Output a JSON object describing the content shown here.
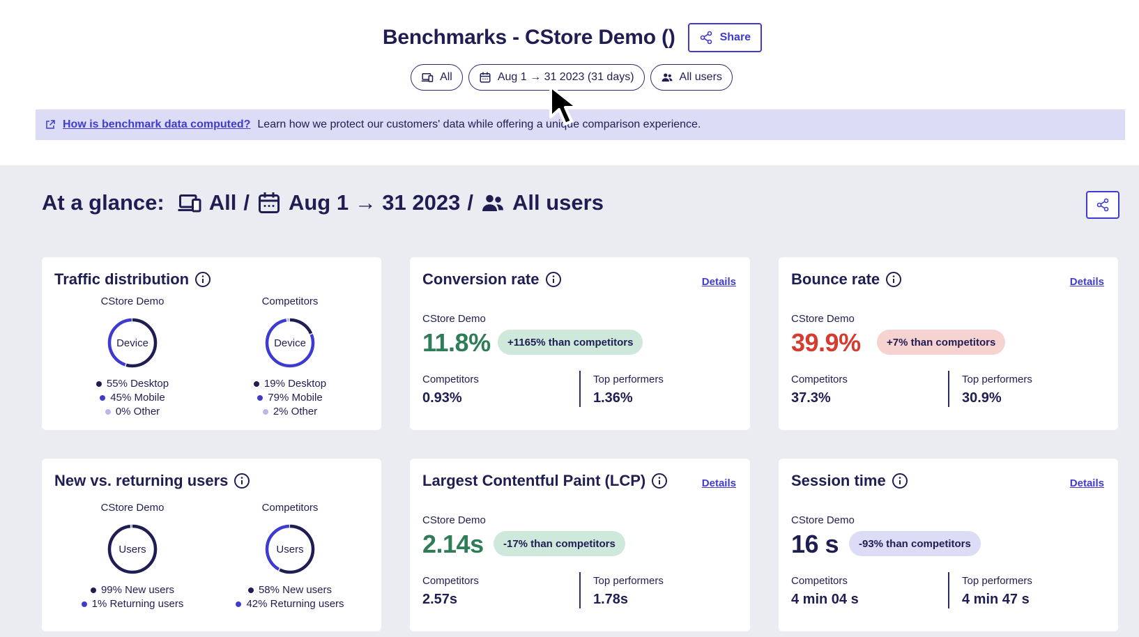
{
  "header": {
    "title": "Benchmarks - CStore Demo ()",
    "share_label": "Share"
  },
  "filters": {
    "device": "All",
    "date": "Aug 1 → 31 2023 (31 days)",
    "users": "All users"
  },
  "banner": {
    "link": "How is benchmark data computed?",
    "text": "Learn how we protect our customers' data while offering a unique comparison experience."
  },
  "glance": {
    "prefix": "At a glance:",
    "device": "All",
    "sep1": "/",
    "date": "Aug 1 → 31 2023",
    "sep2": "/",
    "users": "All users"
  },
  "colors": {
    "primary": "#3f3bd0",
    "navy": "#1f1d52",
    "light": "#b9b8ee",
    "green": "#2e7d57",
    "red": "#d63b2f"
  },
  "traffic": {
    "title": "Traffic distribution",
    "cstore": {
      "label": "CStore Demo",
      "center": "Device",
      "items": [
        {
          "text": "55% Desktop",
          "pct": 55
        },
        {
          "text": "45% Mobile",
          "pct": 45
        },
        {
          "text": "0% Other",
          "pct": 0
        }
      ]
    },
    "competitors": {
      "label": "Competitors",
      "center": "Device",
      "items": [
        {
          "text": "19% Desktop",
          "pct": 19
        },
        {
          "text": "79% Mobile",
          "pct": 79
        },
        {
          "text": "2% Other",
          "pct": 2
        }
      ]
    }
  },
  "new_returning": {
    "title": "New vs. returning users",
    "cstore": {
      "label": "CStore Demo",
      "center": "Users",
      "items": [
        {
          "text": "99% New users",
          "pct": 99
        },
        {
          "text": "1% Returning users",
          "pct": 1
        }
      ]
    },
    "competitors": {
      "label": "Competitors",
      "center": "Users",
      "items": [
        {
          "text": "58% New users",
          "pct": 58
        },
        {
          "text": "42% Returning users",
          "pct": 42
        }
      ]
    }
  },
  "conversion": {
    "title": "Conversion rate",
    "details": "Details",
    "site": "CStore Demo",
    "value": "11.8%",
    "badge": "+1165% than competitors",
    "comp_label": "Competitors",
    "comp_value": "0.93%",
    "top_label": "Top performers",
    "top_value": "1.36%"
  },
  "bounce": {
    "title": "Bounce rate",
    "details": "Details",
    "site": "CStore Demo",
    "value": "39.9%",
    "badge": "+7% than competitors",
    "comp_label": "Competitors",
    "comp_value": "37.3%",
    "top_label": "Top performers",
    "top_value": "30.9%"
  },
  "lcp": {
    "title": "Largest Contentful Paint (LCP)",
    "details": "Details",
    "site": "CStore Demo",
    "value": "2.14s",
    "badge": "-17% than competitors",
    "comp_label": "Competitors",
    "comp_value": "2.57s",
    "top_label": "Top performers",
    "top_value": "1.78s"
  },
  "session": {
    "title": "Session time",
    "details": "Details",
    "site": "CStore Demo",
    "value": "16 s",
    "badge": "-93% than competitors",
    "comp_label": "Competitors",
    "comp_value": "4 min 04 s",
    "top_label": "Top performers",
    "top_value": "4 min 47 s"
  }
}
